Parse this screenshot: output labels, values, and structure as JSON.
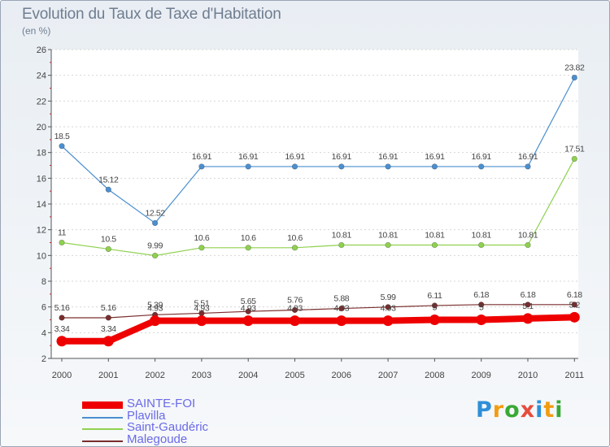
{
  "title": "Evolution du Taux de Taxe d'Habitation",
  "unit": "(en %)",
  "brand": {
    "letters": [
      "P",
      "r",
      "o",
      "x",
      "i",
      "t",
      "i"
    ],
    "colors": [
      "#2f8fd8",
      "#f39c12",
      "#3aa935",
      "#e74c3c",
      "#2f8fd8",
      "#f39c12",
      "#3aa935"
    ]
  },
  "chart_data": {
    "type": "line",
    "title": "Evolution du Taux de Taxe d'Habitation",
    "ylabel": "(en %)",
    "xlabel": "",
    "ylim": [
      2,
      26
    ],
    "yticks": [
      "2",
      "4",
      "6",
      "8",
      "10",
      "12",
      "14",
      "16",
      "18",
      "20",
      "22",
      "24",
      "26"
    ],
    "categories": [
      "2000",
      "2001",
      "2002",
      "2003",
      "2004",
      "2005",
      "2006",
      "2007",
      "2008",
      "2009",
      "2010",
      "2011"
    ],
    "series": [
      {
        "name": "Malegoude",
        "color": "#7a2d2d",
        "values": [
          5.16,
          5.16,
          5.39,
          5.51,
          5.65,
          5.76,
          5.88,
          5.99,
          6.11,
          6.18,
          6.18,
          6.18
        ],
        "labels": [
          "5.16",
          "5.16",
          "5.39",
          "5.51",
          "5.65",
          "5.76",
          "5.88",
          "5.99",
          "6.11",
          "6.18",
          "6.18",
          "6.18"
        ]
      },
      {
        "name": "Saint-Gaudéric",
        "color": "#8fd14f",
        "values": [
          11,
          10.5,
          9.99,
          10.6,
          10.6,
          10.6,
          10.81,
          10.81,
          10.81,
          10.81,
          10.81,
          17.51
        ],
        "labels": [
          "11",
          "10.5",
          "9.99",
          "10.6",
          "10.6",
          "10.6",
          "10.81",
          "10.81",
          "10.81",
          "10.81",
          "10.81",
          "17.51"
        ]
      },
      {
        "name": "Plavilla",
        "color": "#4b8fd0",
        "values": [
          18.5,
          15.12,
          12.52,
          16.91,
          16.91,
          16.91,
          16.91,
          16.91,
          16.91,
          16.91,
          16.91,
          23.82
        ],
        "labels": [
          "18.5",
          "15.12",
          "12.52",
          "16.91",
          "16.91",
          "16.91",
          "16.91",
          "16.91",
          "16.91",
          "16.91",
          "16.91",
          "23.82"
        ]
      },
      {
        "name": "SAINTE-FOI",
        "color": "#ee0000",
        "values": [
          3.34,
          3.34,
          4.93,
          4.93,
          4.93,
          4.93,
          4.93,
          4.93,
          5,
          5,
          5.1,
          5.2
        ],
        "labels": [
          "3.34",
          "3.34",
          "4.93",
          "4.93",
          "4.93",
          "4.93",
          "4.93",
          "4.93",
          "5",
          "5",
          "5.1",
          "5.2"
        ]
      }
    ],
    "legend": [
      {
        "name": "SAINTE-FOI",
        "color": "#ee0000",
        "thick": true
      },
      {
        "name": "Plavilla",
        "color": "#4b8fd0",
        "thick": false
      },
      {
        "name": "Saint-Gaudéric",
        "color": "#8fd14f",
        "thick": false
      },
      {
        "name": "Malegoude",
        "color": "#7a2d2d",
        "thick": false
      }
    ],
    "legend_position": "bottom-left"
  }
}
